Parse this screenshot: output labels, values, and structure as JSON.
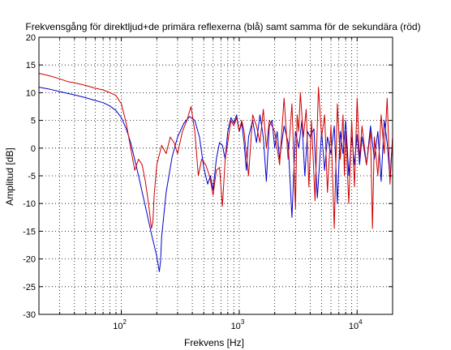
{
  "chart_data": {
    "type": "line",
    "title": "Frekvensgång för direktljud+de primära reflexerna (blå) samt samma för de sekundära (röd)",
    "xlabel": "Frekvens [Hz]",
    "ylabel": "Amplitud [dB]",
    "xscale": "log",
    "xlim": [
      20,
      20000
    ],
    "ylim": [
      -30,
      20
    ],
    "grid": true,
    "legend": "none",
    "xticks": [
      {
        "value": 100,
        "base": "10",
        "exp": "2"
      },
      {
        "value": 1000,
        "base": "10",
        "exp": "3"
      },
      {
        "value": 10000,
        "base": "10",
        "exp": "4"
      }
    ],
    "yticks": [
      20,
      15,
      10,
      5,
      0,
      -5,
      -10,
      -15,
      -20,
      -25,
      -30
    ],
    "series": [
      {
        "color": "#0000cc",
        "x": [
          20,
          25,
          30,
          40,
          50,
          60,
          70,
          80,
          90,
          100,
          110,
          120,
          140,
          160,
          180,
          200,
          210,
          215,
          220,
          240,
          270,
          300,
          340,
          380,
          420,
          460,
          500,
          540,
          570,
          600,
          640,
          680,
          720,
          760,
          800,
          850,
          900,
          950,
          1000,
          1050,
          1100,
          1150,
          1200,
          1300,
          1400,
          1500,
          1600,
          1700,
          1800,
          1900,
          2000,
          2100,
          2200,
          2400,
          2600,
          2800,
          3000,
          3200,
          3400,
          3600,
          3800,
          4000,
          4300,
          4600,
          5000,
          5300,
          5600,
          6000,
          6400,
          6800,
          7200,
          7600,
          8000,
          8500,
          9000,
          9500,
          10000,
          10500,
          11000,
          12000,
          13000,
          14000,
          15000,
          16000,
          17000,
          18000,
          19000,
          20000
        ],
        "y": [
          11,
          10.6,
          10.2,
          9.6,
          9.1,
          8.6,
          8.2,
          7.6,
          6.8,
          5.5,
          3.5,
          1.0,
          -5.0,
          -10.5,
          -15.5,
          -19.5,
          -22.3,
          -20.5,
          -16.0,
          -8.0,
          -1.5,
          2.0,
          4.5,
          5.7,
          5.0,
          2.0,
          -3.5,
          -6.5,
          -5.0,
          -7.5,
          -2.0,
          1.0,
          0.5,
          -2.0,
          3.0,
          5.5,
          4.5,
          6.0,
          3.0,
          4.5,
          1.0,
          -4.0,
          2.0,
          5.0,
          1.0,
          6.0,
          2.0,
          -6.0,
          4.0,
          5.0,
          0.0,
          3.0,
          -2.0,
          4.0,
          1.0,
          -12.5,
          3.0,
          0.0,
          5.0,
          -5.0,
          3.0,
          2.0,
          3.5,
          -9.0,
          3.0,
          -4.0,
          2.0,
          -1.0,
          4.0,
          -10.0,
          3.0,
          -1.0,
          5.0,
          -5.0,
          2.0,
          -3.0,
          2.5,
          -3.0,
          2.0,
          -3.0,
          4.0,
          -2.0,
          3.0,
          -6.0,
          5.0,
          1.0,
          -5.5,
          2.0
        ]
      },
      {
        "color": "#cc0000",
        "x": [
          20,
          25,
          30,
          35,
          40,
          50,
          60,
          70,
          80,
          90,
          100,
          110,
          120,
          130,
          140,
          150,
          160,
          170,
          180,
          185,
          190,
          200,
          220,
          240,
          260,
          280,
          300,
          330,
          360,
          390,
          420,
          450,
          480,
          520,
          560,
          600,
          640,
          680,
          720,
          760,
          800,
          850,
          900,
          950,
          1000,
          1050,
          1100,
          1200,
          1300,
          1400,
          1500,
          1600,
          1700,
          1800,
          2000,
          2200,
          2400,
          2600,
          2800,
          3000,
          3100,
          3200,
          3300,
          3500,
          3700,
          3900,
          4100,
          4400,
          4700,
          5000,
          5300,
          5600,
          6000,
          6400,
          6800,
          7200,
          7600,
          7800,
          8000,
          8500,
          9000,
          9500,
          10000,
          10500,
          11000,
          12000,
          13000,
          13500,
          14000,
          15000,
          16000,
          17000,
          18000,
          19000,
          20000
        ],
        "y": [
          13.5,
          13.0,
          12.5,
          12.0,
          11.8,
          11.3,
          10.8,
          10.5,
          10.0,
          9.5,
          8.0,
          4.5,
          0.0,
          -4.0,
          -2.0,
          -3.0,
          -6.0,
          -10.0,
          -14.5,
          -13.5,
          -8.5,
          -3.0,
          0.5,
          -1.0,
          2.0,
          1.0,
          -1.0,
          3.0,
          5.0,
          7.5,
          3.0,
          -5.0,
          -2.0,
          -3.0,
          -5.0,
          -8.5,
          -4.0,
          -3.5,
          -10.5,
          -2.0,
          1.0,
          5.0,
          4.0,
          5.5,
          3.0,
          5.0,
          3.0,
          -5.0,
          6.0,
          4.0,
          1.0,
          7.0,
          0.0,
          5.0,
          3.0,
          -3.0,
          9.0,
          -2.0,
          8.0,
          -11.0,
          6.0,
          3.0,
          10.0,
          2.0,
          7.0,
          -7.0,
          5.0,
          -9.5,
          11.0,
          2.0,
          6.0,
          -8.0,
          4.0,
          -14.5,
          8.0,
          -2.0,
          6.0,
          -5.0,
          3.0,
          -10.0,
          5.0,
          -7.0,
          9.0,
          -2.0,
          4.0,
          -3.0,
          3.0,
          -14.5,
          2.0,
          -5.0,
          6.0,
          -1.0,
          9.0,
          -6.5,
          2.0
        ]
      }
    ]
  }
}
